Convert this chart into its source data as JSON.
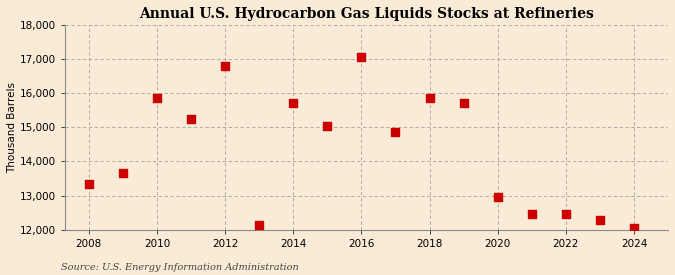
{
  "title": "Annual U.S. Hydrocarbon Gas Liquids Stocks at Refineries",
  "ylabel": "Thousand Barrels",
  "source": "Source: U.S. Energy Information Administration",
  "background_color": "#faebd7",
  "marker_color": "#cc0000",
  "years": [
    2008,
    2009,
    2010,
    2011,
    2012,
    2013,
    2014,
    2015,
    2016,
    2017,
    2018,
    2019,
    2020,
    2021,
    2022,
    2023,
    2024
  ],
  "values": [
    13350,
    13650,
    15850,
    15250,
    16800,
    12150,
    15700,
    15050,
    17050,
    14850,
    15850,
    15700,
    12950,
    12450,
    12450,
    12300,
    12050
  ],
  "ylim": [
    12000,
    18000
  ],
  "yticks": [
    12000,
    13000,
    14000,
    15000,
    16000,
    17000,
    18000
  ],
  "xlim": [
    2007.3,
    2025.0
  ],
  "xticks": [
    2008,
    2010,
    2012,
    2014,
    2016,
    2018,
    2020,
    2022,
    2024
  ],
  "grid_color": "#999999",
  "title_fontsize": 10,
  "axis_fontsize": 7.5,
  "source_fontsize": 7,
  "marker_size": 28
}
